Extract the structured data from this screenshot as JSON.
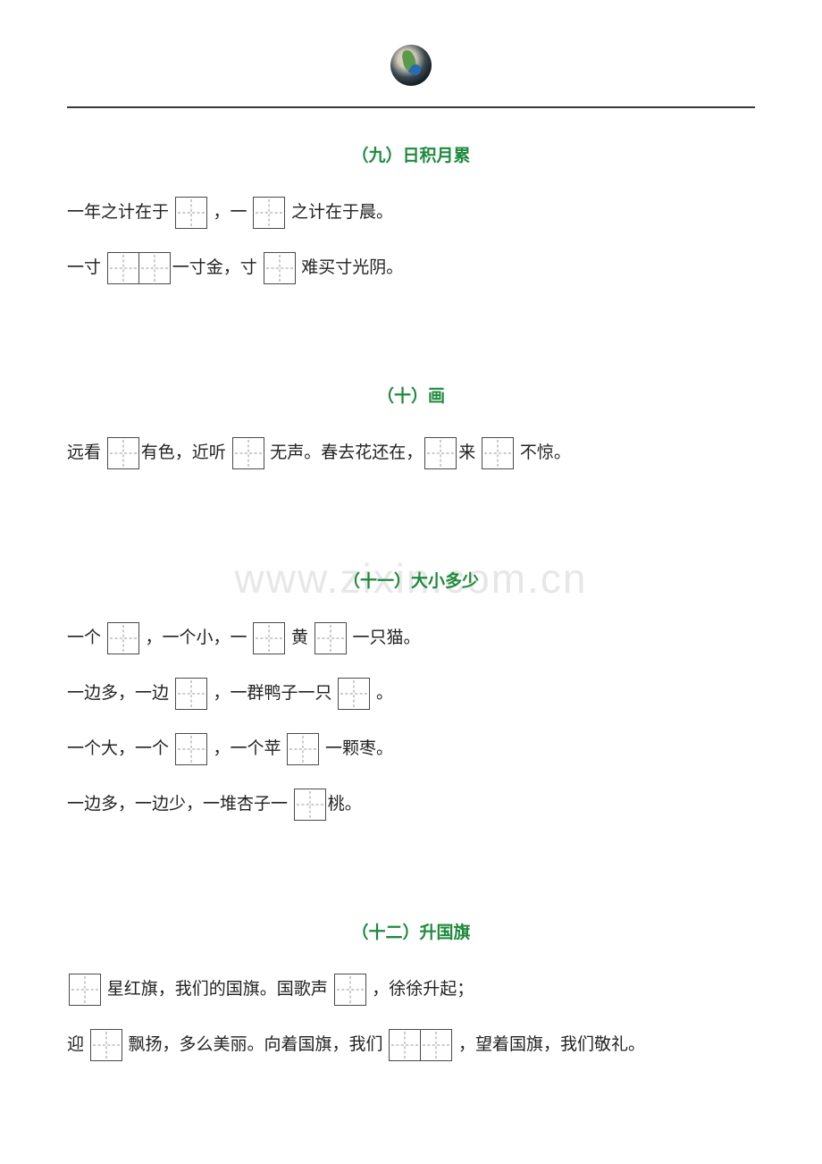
{
  "colors": {
    "title_color": "#1e8a3c",
    "text_color": "#222222",
    "border_color": "#333333"
  },
  "watermark": "www.zixin.com.cn",
  "sections": {
    "s1": {
      "title": "（九）日积月累",
      "line1_a": "一年之计在于 ",
      "line1_b": " ，一 ",
      "line1_c": " 之计在于晨。",
      "line2_a": "一寸 ",
      "line2_b": "一寸金，寸 ",
      "line2_c": " 难买寸光阴。"
    },
    "s2": {
      "title": "（十）画",
      "line1_a": "远看 ",
      "line1_b": "有色，近听 ",
      "line1_c": " 无声。春去花还在，",
      "line1_d": "来 ",
      "line1_e": " 不惊。"
    },
    "s3": {
      "title": "（十一）大小多少",
      "line1_a": "一个 ",
      "line1_b": " ，一个小，一 ",
      "line1_c": " 黄 ",
      "line1_d": " 一只猫。",
      "line2_a": "一边多，一边 ",
      "line2_b": " ，一群鸭子一只 ",
      "line2_c": " 。",
      "line3_a": "一个大，一个 ",
      "line3_b": " ，一个苹 ",
      "line3_c": " 一颗枣。",
      "line4_a": "一边多，一边少，一堆杏子一 ",
      "line4_b": "桃。"
    },
    "s4": {
      "title": "（十二）升国旗",
      "line1_a": " 星红旗，我们的国旗。国歌声 ",
      "line1_b": " ，徐徐升起；",
      "line2_a": "迎 ",
      "line2_b": " 飘扬，多么美丽。向着国旗，我们 ",
      "line2_c": " ，望着国旗，我们敬礼。"
    }
  }
}
